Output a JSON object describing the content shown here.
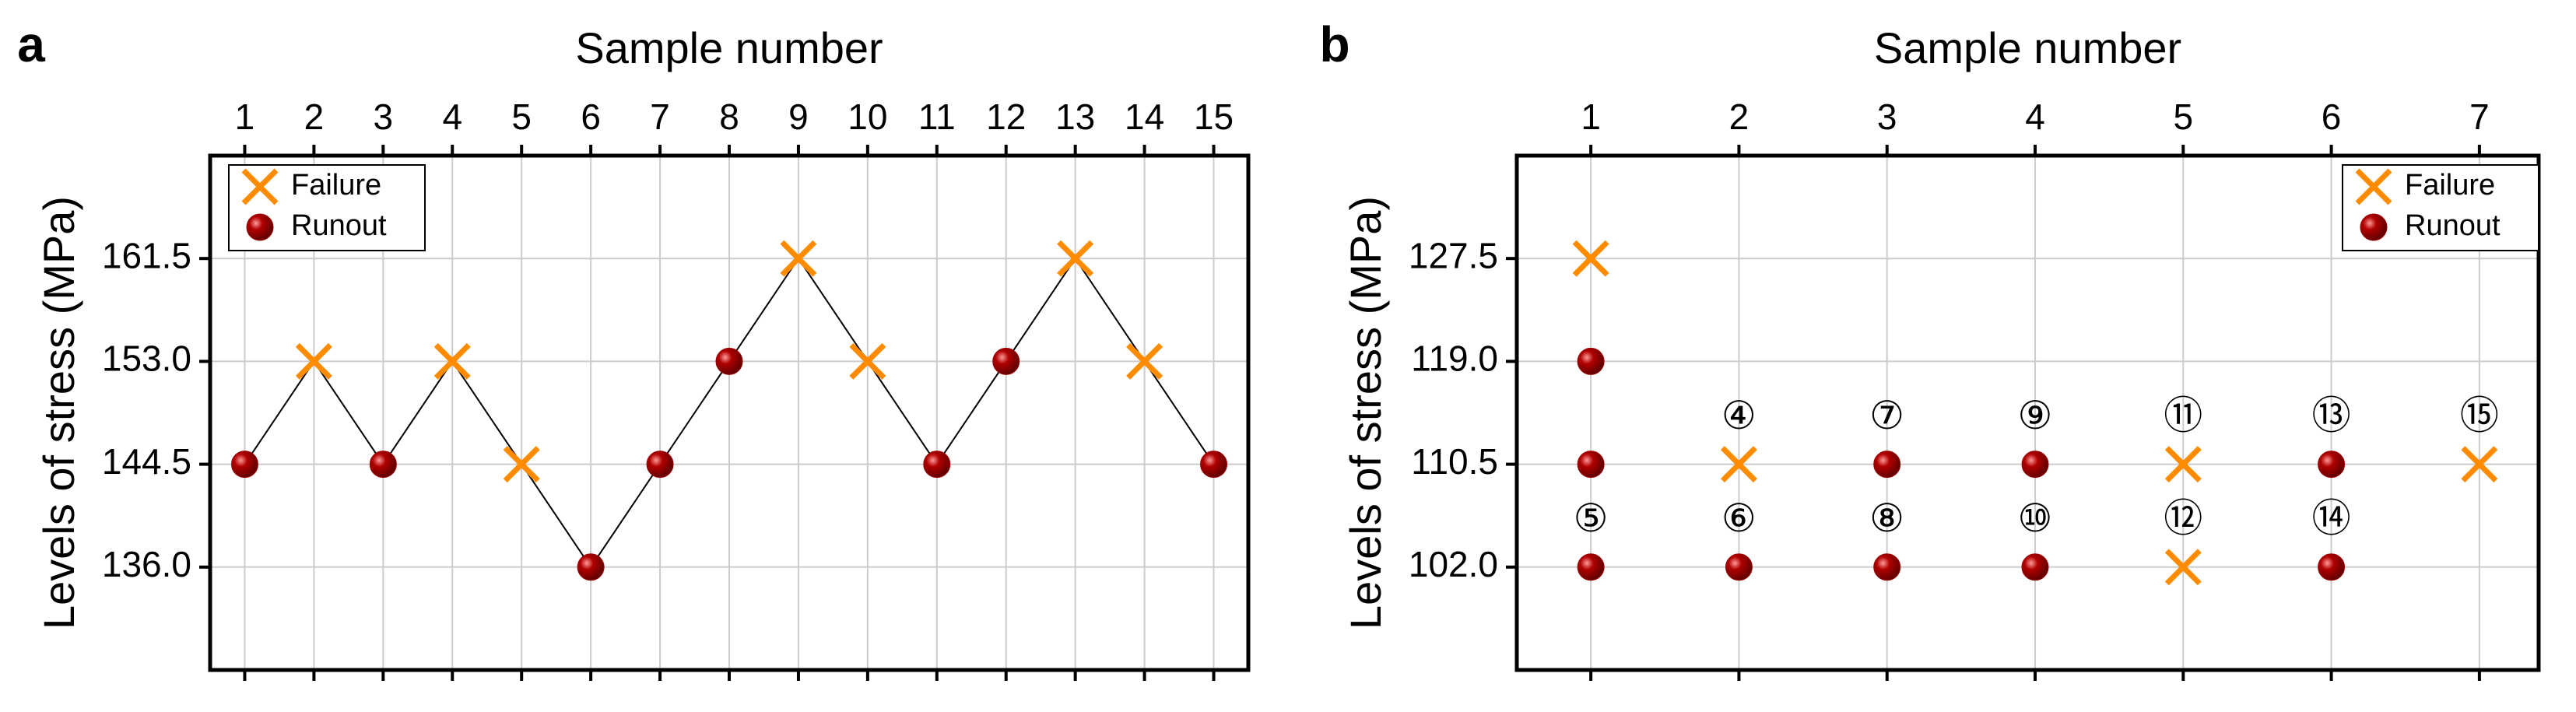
{
  "chart_data": [
    {
      "type": "scatter",
      "panel_label": "a",
      "x_label": "Sample number",
      "y_label": "Levels of stress (MPa)",
      "x": [
        1,
        2,
        3,
        4,
        5,
        6,
        7,
        8,
        9,
        10,
        11,
        12,
        13,
        14,
        15
      ],
      "series": [
        {
          "name": "Failure",
          "marker": "x",
          "color": "#ff8c00",
          "values": [
            null,
            153,
            null,
            153,
            144.5,
            null,
            null,
            null,
            161.5,
            153,
            null,
            null,
            161.5,
            153,
            null
          ]
        },
        {
          "name": "Runout",
          "marker": "o",
          "color": "#a00000",
          "values": [
            144.5,
            null,
            144.5,
            null,
            null,
            136,
            144.5,
            153,
            null,
            null,
            144.5,
            153,
            null,
            null,
            144.5
          ]
        }
      ],
      "connect_line": true,
      "line_color": "#000000",
      "xlim": [
        0.5,
        15.5
      ],
      "xticks": [
        1,
        2,
        3,
        4,
        5,
        6,
        7,
        8,
        9,
        10,
        11,
        12,
        13,
        14,
        15
      ],
      "ylim": [
        127.5,
        170
      ],
      "yticks": [
        {
          "value": 136,
          "label": "136.0"
        },
        144.5,
        {
          "value": 153,
          "label": "153.0"
        },
        161.5
      ],
      "grid": true,
      "legend": "upper left"
    },
    {
      "type": "scatter",
      "panel_label": "b",
      "x_label": "Sample number",
      "y_label": "Levels of stress (MPa)",
      "series": [
        {
          "name": "Failure",
          "marker": "x",
          "color": "#ff8c00",
          "x": [
            1,
            2,
            5,
            5,
            7
          ],
          "values": [
            127.5,
            110.5,
            110.5,
            102,
            110.5
          ]
        },
        {
          "name": "Runout",
          "marker": "o",
          "color": "#a00000",
          "x": [
            1,
            1,
            1,
            2,
            3,
            3,
            4,
            4,
            6,
            6
          ],
          "values": [
            119,
            110.5,
            102,
            102,
            110.5,
            102,
            110.5,
            102,
            110.5,
            102
          ]
        }
      ],
      "annotations": [
        {
          "text": "⑤",
          "x": 1,
          "y": 105.8
        },
        {
          "text": "④",
          "x": 2,
          "y": 114.3
        },
        {
          "text": "⑥",
          "x": 2,
          "y": 105.8
        },
        {
          "text": "⑦",
          "x": 3,
          "y": 114.3
        },
        {
          "text": "⑧",
          "x": 3,
          "y": 105.8
        },
        {
          "text": "⑨",
          "x": 4,
          "y": 114.3
        },
        {
          "text": "⑩",
          "x": 4,
          "y": 105.8
        },
        {
          "text": "⑪",
          "x": 5,
          "y": 114.3
        },
        {
          "text": "⑫",
          "x": 5,
          "y": 105.8
        },
        {
          "text": "⑬",
          "x": 6,
          "y": 114.3
        },
        {
          "text": "⑭",
          "x": 6,
          "y": 105.8
        },
        {
          "text": "⑮",
          "x": 7,
          "y": 114.3
        }
      ],
      "xlim": [
        0.5,
        7.4
      ],
      "xticks": [
        1,
        2,
        3,
        4,
        5,
        6,
        7
      ],
      "ylim": [
        93.5,
        136
      ],
      "yticks": [
        {
          "value": 102,
          "label": "102.0"
        },
        {
          "value": 110.5,
          "label": "110.5"
        },
        {
          "value": 119,
          "label": "119.0"
        },
        127.5
      ],
      "grid": true,
      "legend": "upper right"
    }
  ]
}
